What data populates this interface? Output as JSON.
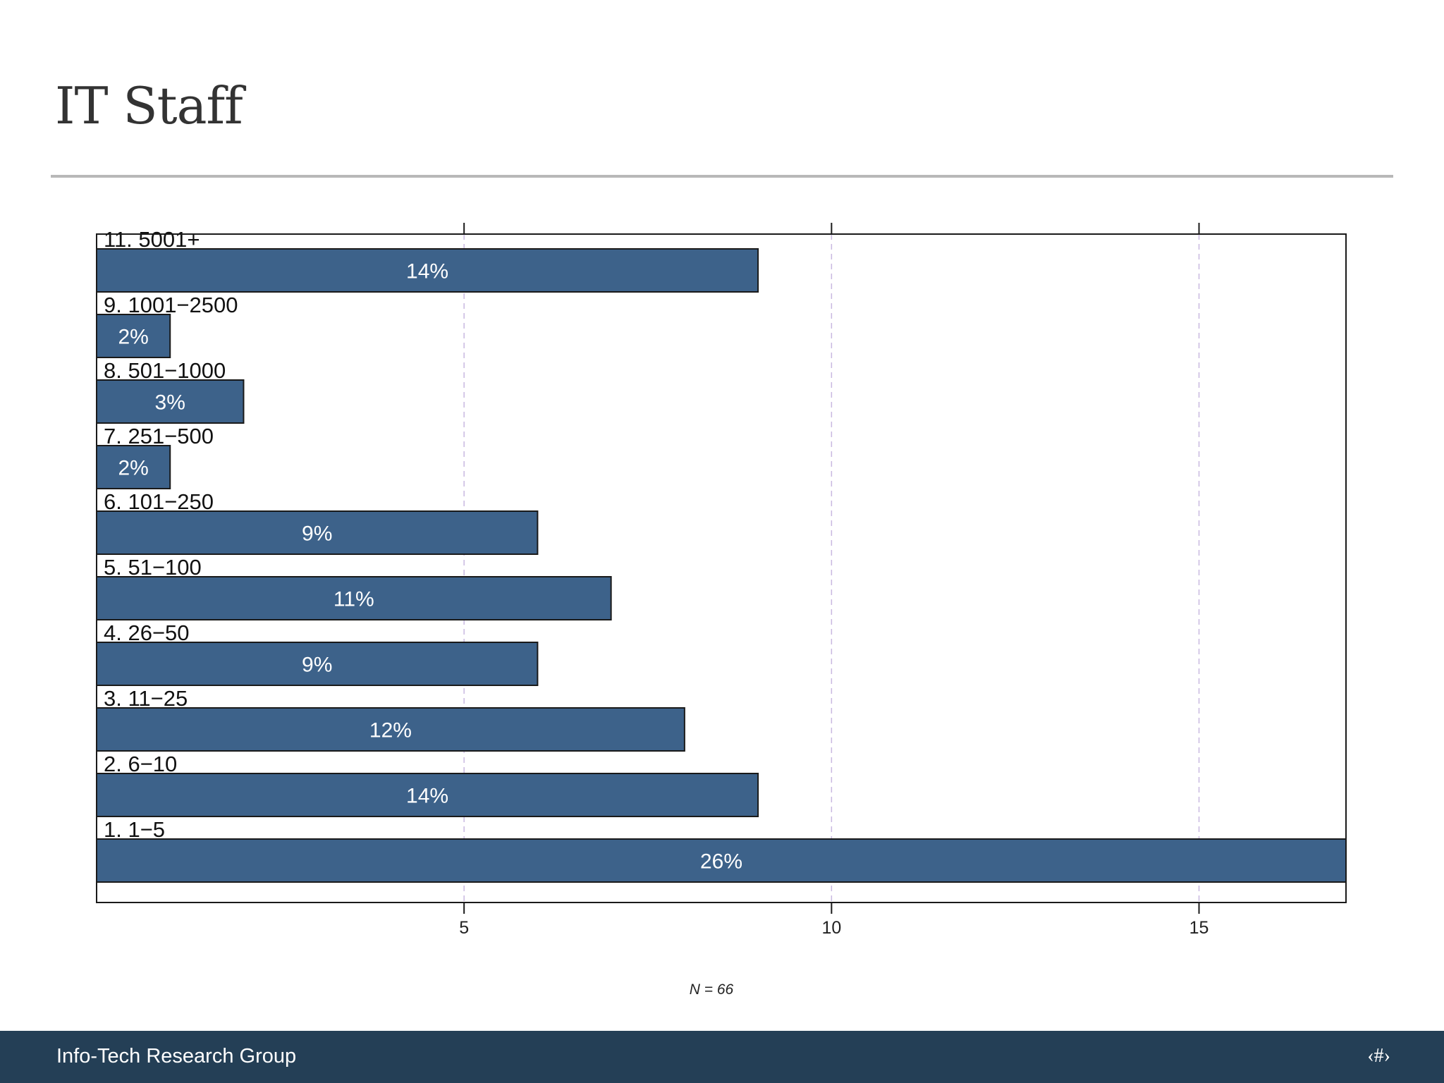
{
  "slide": {
    "title": "IT Staff",
    "footer_brand": "Info-Tech Research Group",
    "page_marker": "‹#›"
  },
  "colors": {
    "bar": "#3d628a",
    "bar_border": "#1a1a1a",
    "bar_label": "#ffffff",
    "grid": "#c8b8e0",
    "footer": "#243f56"
  },
  "chart_data": {
    "type": "bar",
    "orientation": "horizontal",
    "categories": [
      "11. 5001+",
      "9. 1001−2500",
      "8. 501−1000",
      "7. 251−500",
      "6. 101−250",
      "5. 51−100",
      "4. 26−50",
      "3. 11−25",
      "2. 6−10",
      "1. 1−5"
    ],
    "values": [
      9,
      1,
      2,
      1,
      6,
      7,
      6,
      8,
      9,
      17
    ],
    "data_labels": [
      "14%",
      "2%",
      "3%",
      "2%",
      "9%",
      "11%",
      "9%",
      "12%",
      "14%",
      "26%"
    ],
    "xlim": [
      0,
      17
    ],
    "xticks": [
      5,
      10,
      15
    ],
    "xtick_labels": [
      "5",
      "10",
      "15"
    ],
    "grid": "vertical dashed",
    "note": "N = 66"
  }
}
